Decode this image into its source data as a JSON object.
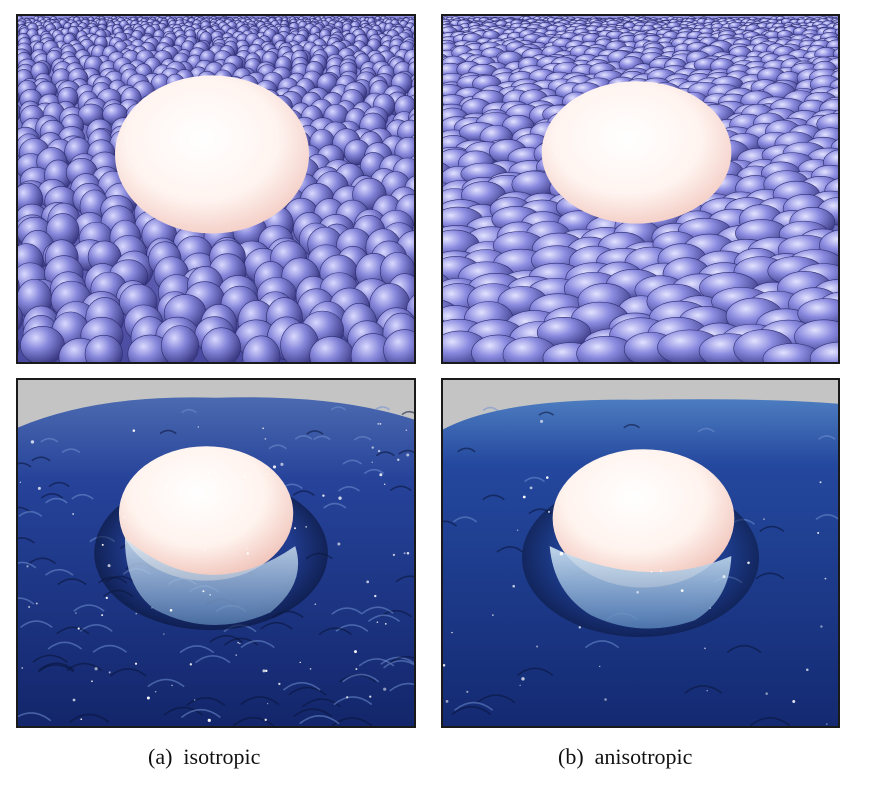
{
  "figure": {
    "captions": {
      "a": "(a)  isotropic",
      "b": "(b)  anisotropic"
    },
    "colors": {
      "particle": "#7f7fd6",
      "particle_dark": "#3c3c8a",
      "sphere": "#fff2ee",
      "fluid": "#1f3a86",
      "fluid_dark": "#0d1c4f",
      "background": "#c8c8c8"
    }
  }
}
